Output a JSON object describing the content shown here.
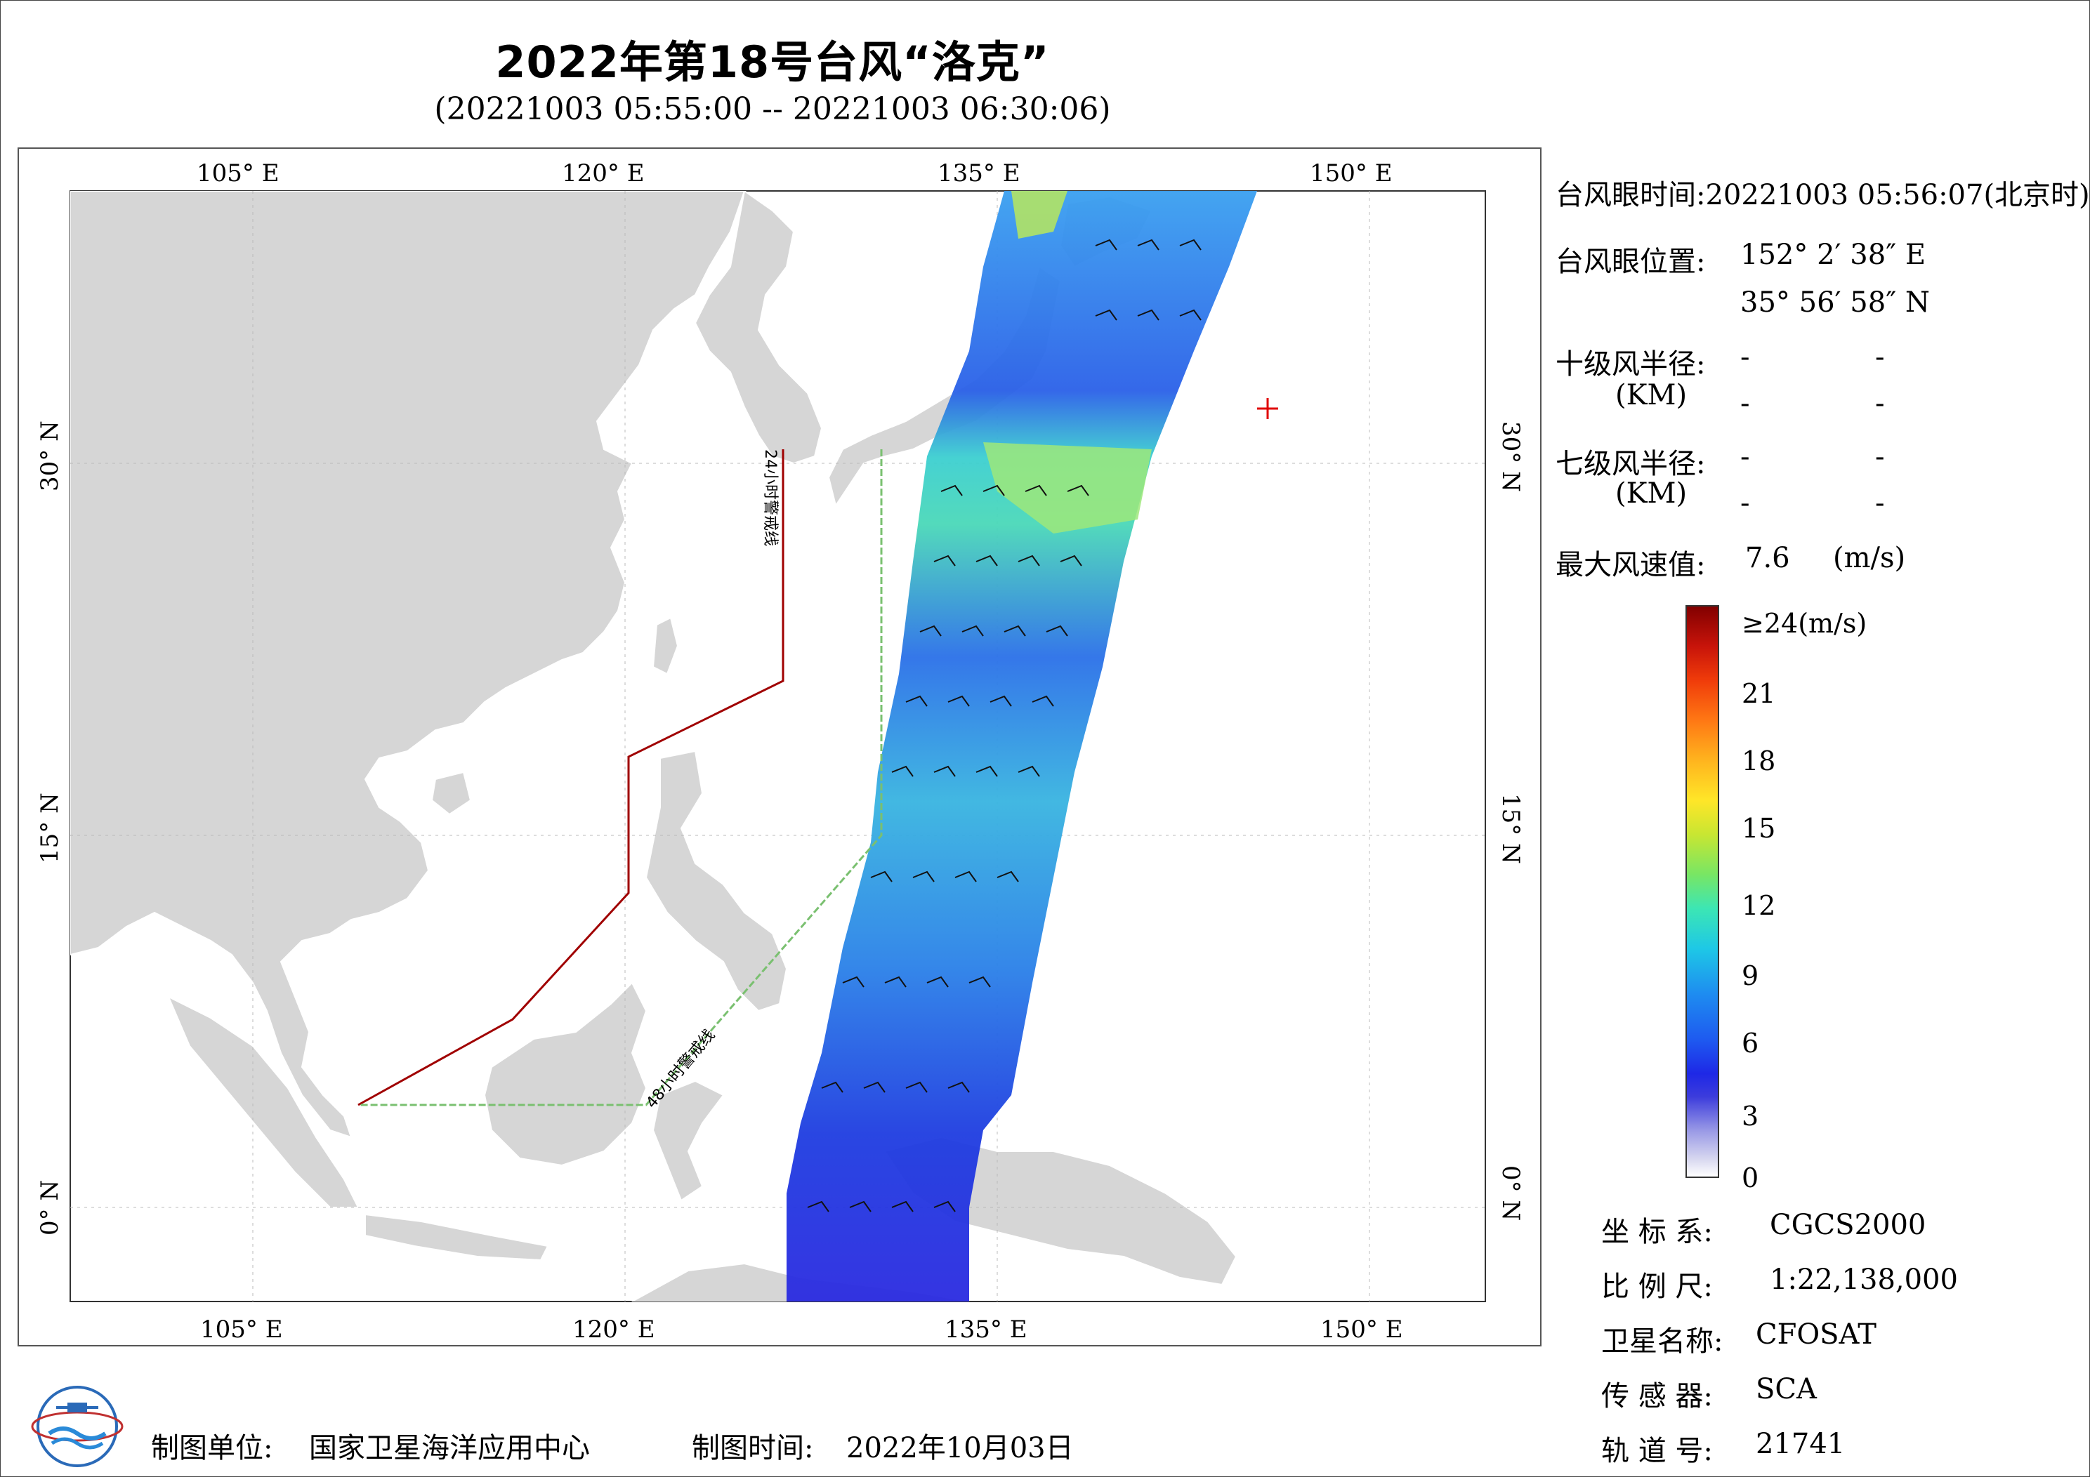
{
  "title": "2022年第18号台风“洛克”",
  "subtitle": "(20221003 05:55:00 -- 20221003 06:30:06)",
  "map": {
    "lon_labels": [
      "105° E",
      "120° E",
      "135° E",
      "150° E"
    ],
    "lat_labels": [
      "30° N",
      "15° N",
      "0° N"
    ],
    "warning_24h": "24小时警戒线",
    "warning_48h": "48小时警戒线",
    "colors": {
      "land": "#d6d6d6",
      "sea": "#ffffff",
      "warning_24h": "#a00000",
      "warning_48h": "#7ac070",
      "typhoon_marker": "#e00000"
    }
  },
  "info": {
    "eye_time_label": "台风眼时间:",
    "eye_time_value": "20221003 05:56:07(北京时)",
    "eye_position_label": "台风眼位置:",
    "eye_lon": "152° 2′ 38″ E",
    "eye_lat": "35° 56′ 58″ N",
    "r10_label": "十级风半径:",
    "r7_label": "七级风半径:",
    "km_label": "(KM)",
    "dash": "-",
    "max_wind_label": "最大风速值:",
    "max_wind_value": "7.6",
    "max_wind_unit": "(m/s)"
  },
  "colorbar": {
    "ticks": [
      "≥24(m/s)",
      "21",
      "18",
      "15",
      "12",
      "9",
      "6",
      "3",
      "0"
    ]
  },
  "meta": {
    "crs_label": "坐 标 系:",
    "crs_value": "CGCS2000",
    "scale_label": "比 例 尺:",
    "scale_value": "1:22,138,000",
    "satellite_label": "卫星名称:",
    "satellite_value": "CFOSAT",
    "sensor_label": "传 感 器:",
    "sensor_value": "SCA",
    "orbit_label": "轨 道 号:",
    "orbit_value": "21741"
  },
  "footer": {
    "org_label": "制图单位:",
    "org_value": "国家卫星海洋应用中心",
    "date_label": "制图时间:",
    "date_value": "2022年10月03日"
  }
}
